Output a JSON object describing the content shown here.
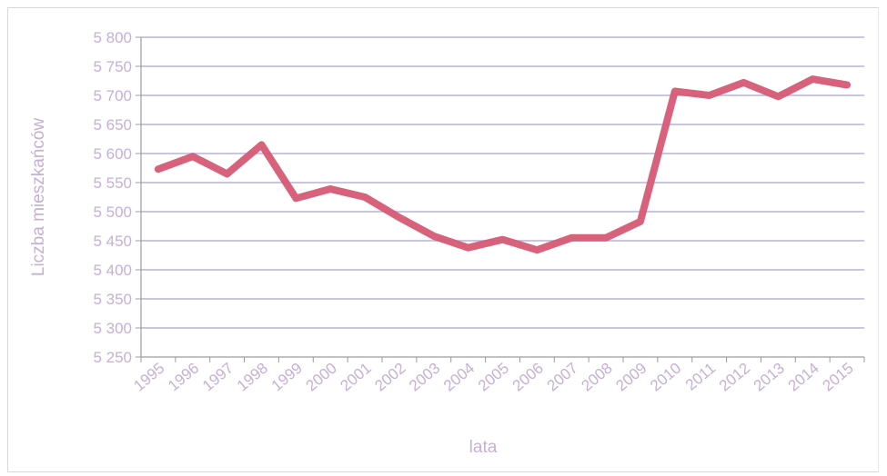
{
  "chart_data": {
    "type": "line",
    "title": "",
    "xlabel": "lata",
    "ylabel": "Liczba mieszkańców",
    "x": [
      "1995",
      "1996",
      "1997",
      "1998",
      "1999",
      "2000",
      "2001",
      "2002",
      "2003",
      "2004",
      "2005",
      "2006",
      "2007",
      "2008",
      "2009",
      "2010",
      "2011",
      "2012",
      "2013",
      "2014",
      "2015"
    ],
    "y_tick_labels": [
      "5 800",
      "5 750",
      "5 700",
      "5 650",
      "5 600",
      "5 550",
      "5 500",
      "5 450",
      "5 400",
      "5 350",
      "5 300",
      "5 250"
    ],
    "ylim": [
      5250,
      5800
    ],
    "grid": true,
    "legend": "none",
    "series": [
      {
        "values": [
          5573,
          5595,
          5565,
          5615,
          5523,
          5539,
          5525,
          5490,
          5458,
          5438,
          5452,
          5434,
          5455,
          5455,
          5483,
          5707,
          5700,
          5722,
          5698,
          5728,
          5718
        ],
        "color": "#d65a74"
      }
    ],
    "colors": {
      "gridline": "#b8b2da",
      "axis": "#9c9c9c",
      "text": "#c6b0d4",
      "line": "#d65a74"
    }
  }
}
